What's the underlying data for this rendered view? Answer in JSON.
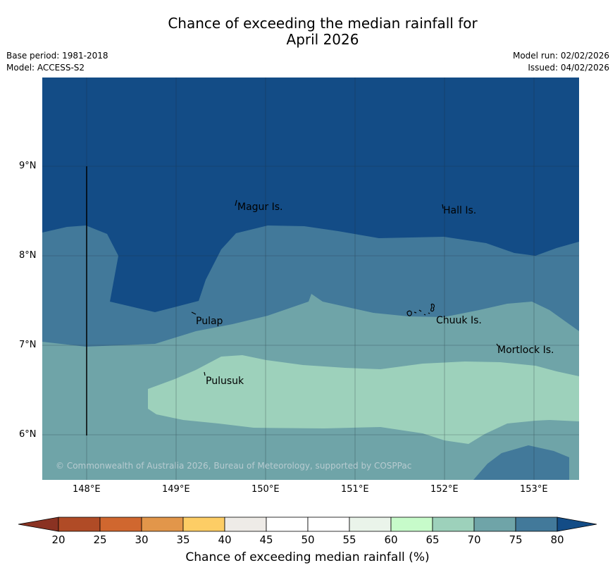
{
  "header": {
    "title_line1": "Chance of exceeding the median rainfall for",
    "title_line2": "April 2026",
    "base_period": "Base period: 1981-2018",
    "model": "Model: ACCESS-S2",
    "model_run": "Model run: 02/02/2026",
    "issued": "Issued: 04/02/2026"
  },
  "map": {
    "lat_labels": [
      "9°N",
      "8°N",
      "7°N",
      "6°N"
    ],
    "lon_labels": [
      "148°E",
      "149°E",
      "150°E",
      "151°E",
      "152°E",
      "153°E"
    ],
    "places": [
      "Magur Is.",
      "Hall Is.",
      "Pulap",
      "Chuuk Is.",
      "Mortlock Is.",
      "Pulusuk"
    ],
    "copyright": "© Commonwealth of Australia 2026, Bureau of Meteorology, supported by COSPPac",
    "colors": {
      "c80plus": "#134c86",
      "c75": "#42799a",
      "c70": "#6fa4a8",
      "c65": "#9dd1bb"
    }
  },
  "colorbar": {
    "label": "Chance of exceeding median rainfall (%)",
    "ticks": [
      "20",
      "25",
      "30",
      "35",
      "40",
      "45",
      "50",
      "55",
      "60",
      "65",
      "70",
      "75",
      "80"
    ],
    "colors": [
      "#b04b26",
      "#d0672f",
      "#e2964a",
      "#fdcd65",
      "#eeebe7",
      "#ffffff",
      "#ffffff",
      "#eaf4ea",
      "#c7fbca",
      "#9dd1bb",
      "#6fa4a8",
      "#42799a"
    ],
    "under_color": "#8a3222",
    "over_color": "#134c86"
  }
}
